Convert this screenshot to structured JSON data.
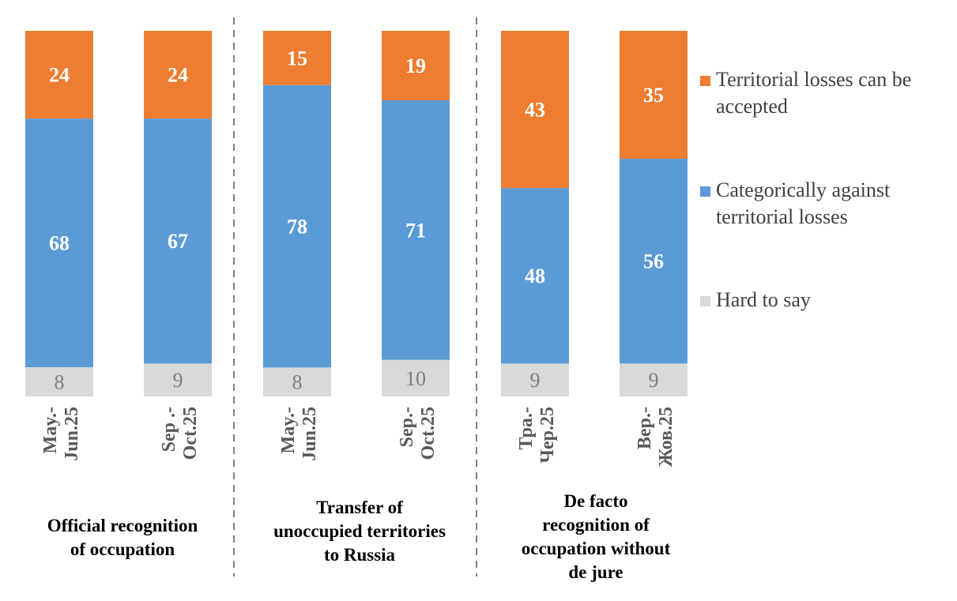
{
  "chart_data": {
    "type": "bar",
    "stacked": true,
    "percent_stacked": true,
    "groups": [
      {
        "label_lines": [
          "Official recognition",
          "of occupation"
        ],
        "bars": [
          {
            "label_lines": [
              "May.-",
              "Jun.25"
            ],
            "hard_to_say": 8,
            "against": 68,
            "accept": 24
          },
          {
            "label_lines": [
              "Sep .-",
              "Oct.25"
            ],
            "hard_to_say": 9,
            "against": 67,
            "accept": 24
          }
        ]
      },
      {
        "label_lines": [
          "Transfer of",
          "unoccupied territories",
          "to Russia"
        ],
        "bars": [
          {
            "label_lines": [
              "May.-",
              "Jun.25"
            ],
            "hard_to_say": 8,
            "against": 78,
            "accept": 15
          },
          {
            "label_lines": [
              "Sep.-",
              "Oct.25"
            ],
            "hard_to_say": 10,
            "against": 71,
            "accept": 19
          }
        ]
      },
      {
        "label_lines": [
          "De facto",
          "recognition of",
          "occupation without",
          "de jure"
        ],
        "bars": [
          {
            "label_lines": [
              "Тра.-",
              "Чер.25"
            ],
            "hard_to_say": 9,
            "against": 48,
            "accept": 43
          },
          {
            "label_lines": [
              "Вер.-",
              "Жов.25"
            ],
            "hard_to_say": 9,
            "against": 56,
            "accept": 35
          }
        ]
      }
    ],
    "series": [
      {
        "key": "accept",
        "name_lines": [
          "Territorial losses can be",
          "accepted"
        ],
        "color": "#ED7D31"
      },
      {
        "key": "against",
        "name_lines": [
          "Categorically against",
          "territorial losses"
        ],
        "color": "#5B9BD5"
      },
      {
        "key": "hard_to_say",
        "name_lines": [
          "Hard to say"
        ],
        "color": "#D9D9D9"
      }
    ],
    "legend_position": "right",
    "separator_style": "dashed"
  }
}
